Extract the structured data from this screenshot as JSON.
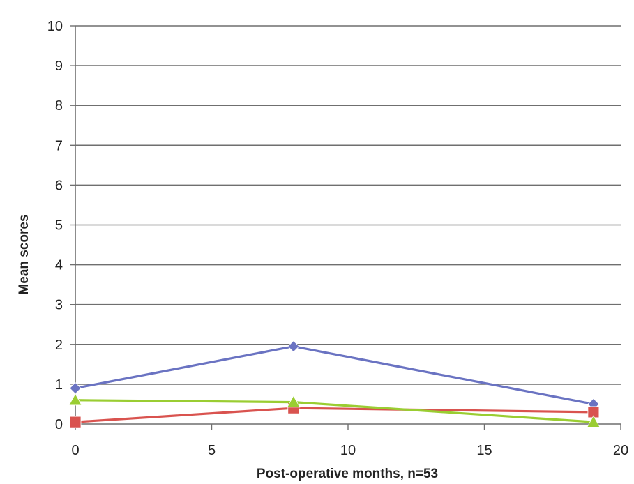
{
  "chart_data": {
    "type": "line",
    "title": "",
    "xlabel": "Post-operative months, n=53",
    "ylabel": "Mean scores",
    "xlim": [
      0,
      20
    ],
    "ylim": [
      0,
      10
    ],
    "xticks": [
      0,
      5,
      10,
      15,
      20
    ],
    "yticks": [
      0,
      1,
      2,
      3,
      4,
      5,
      6,
      7,
      8,
      9,
      10
    ],
    "grid": "horizontal",
    "legend": "none",
    "series": [
      {
        "color": "#6a73c2",
        "marker": "diamond",
        "x": [
          0,
          8,
          19
        ],
        "y": [
          0.9,
          1.95,
          0.5
        ]
      },
      {
        "color": "#d9534f",
        "marker": "square",
        "x": [
          0,
          8,
          19
        ],
        "y": [
          0.05,
          0.4,
          0.3
        ]
      },
      {
        "color": "#9acd32",
        "marker": "triangle",
        "x": [
          0,
          8,
          19
        ],
        "y": [
          0.6,
          0.55,
          0.05
        ]
      }
    ]
  }
}
